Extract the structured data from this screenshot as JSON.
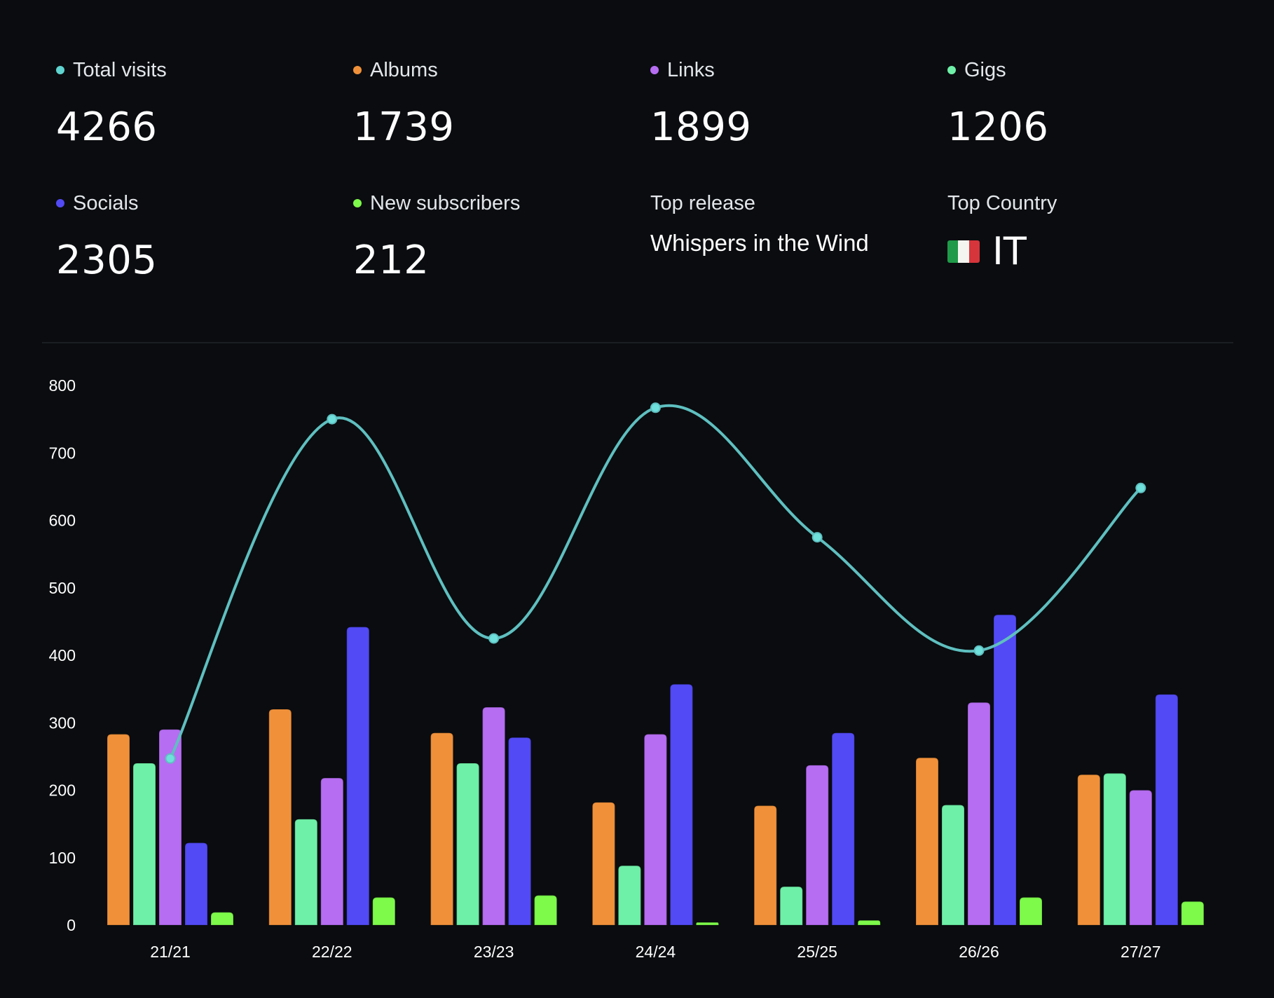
{
  "stats": [
    {
      "id": "total-visits",
      "label": "Total visits",
      "value": "4266",
      "color": "#5fd4d0"
    },
    {
      "id": "albums",
      "label": "Albums",
      "value": "1739",
      "color": "#f0913a"
    },
    {
      "id": "links",
      "label": "Links",
      "value": "1899",
      "color": "#b66df2"
    },
    {
      "id": "gigs",
      "label": "Gigs",
      "value": "1206",
      "color": "#6ef0a8"
    },
    {
      "id": "socials",
      "label": "Socials",
      "value": "2305",
      "color": "#524af5"
    },
    {
      "id": "new-subscribers",
      "label": "New subscribers",
      "value": "212",
      "color": "#7dfa4a"
    }
  ],
  "top_release": {
    "label": "Top release",
    "value": "Whispers in the Wind"
  },
  "top_country": {
    "label": "Top Country",
    "value": "IT",
    "flag": "italy-flag-icon"
  },
  "chart_data": {
    "type": "bar",
    "categories": [
      "21/21",
      "22/22",
      "23/23",
      "24/24",
      "25/25",
      "26/26",
      "27/27"
    ],
    "ylim": [
      0,
      800
    ],
    "yticks": [
      0,
      100,
      200,
      300,
      400,
      500,
      600,
      700,
      800
    ],
    "grid": false,
    "series": [
      {
        "name": "Albums",
        "type": "bar",
        "color": "#f0913a",
        "values": [
          283,
          320,
          285,
          182,
          177,
          248,
          223
        ]
      },
      {
        "name": "Gigs",
        "type": "bar",
        "color": "#6ef0a8",
        "values": [
          240,
          157,
          240,
          88,
          57,
          178,
          225
        ]
      },
      {
        "name": "Links",
        "type": "bar",
        "color": "#b66df2",
        "values": [
          290,
          218,
          323,
          283,
          237,
          330,
          200
        ]
      },
      {
        "name": "Socials",
        "type": "bar",
        "color": "#524af5",
        "values": [
          122,
          442,
          278,
          357,
          285,
          460,
          342
        ]
      },
      {
        "name": "New subscribers",
        "type": "bar",
        "color": "#7dfa4a",
        "values": [
          19,
          41,
          44,
          4,
          7,
          41,
          35
        ]
      },
      {
        "name": "Total visits",
        "type": "line",
        "color": "#5fbfc0",
        "values": [
          247,
          750,
          425,
          767,
          575,
          407,
          648
        ]
      }
    ]
  }
}
